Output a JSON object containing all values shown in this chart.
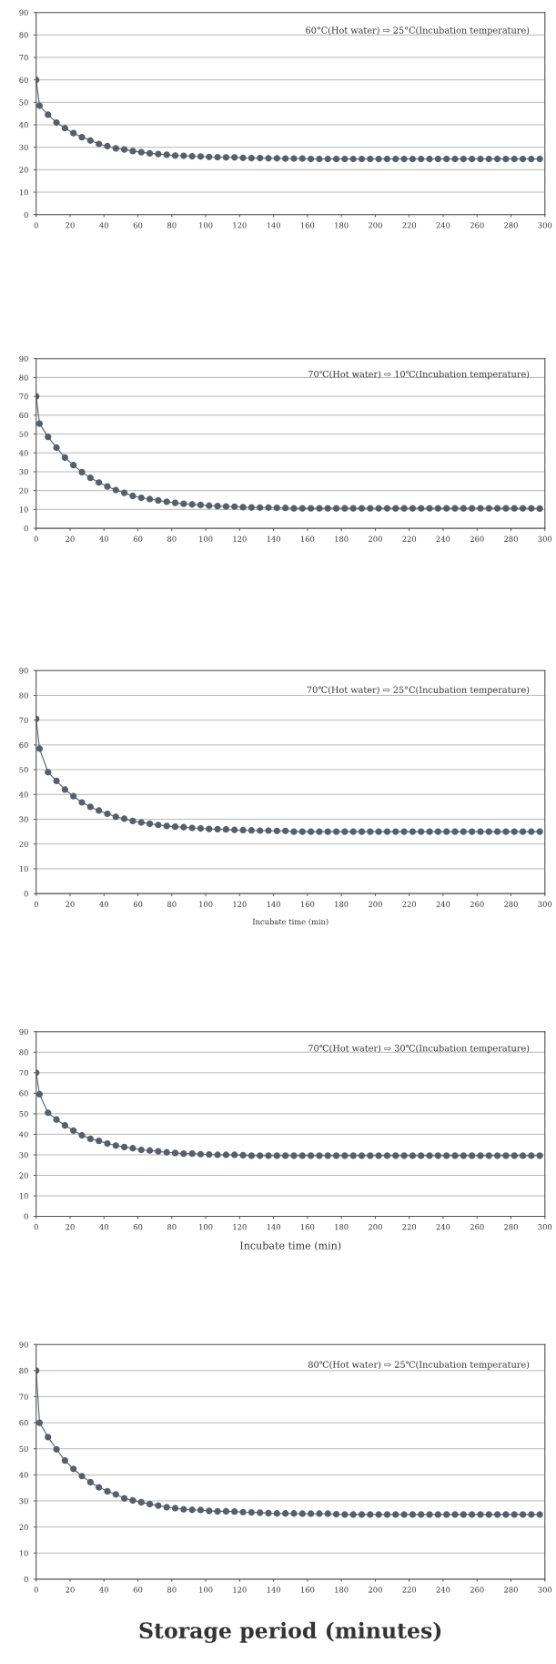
{
  "chart_data": [
    {
      "type": "line",
      "title": "60°C(Hot water) ⇨ 25°C(Incubation temperature)",
      "marker": "circle",
      "line_style": "solid",
      "grid": "y",
      "xlim": [
        0,
        300
      ],
      "ylim": [
        0,
        90
      ],
      "xticks": [
        0,
        20,
        40,
        60,
        80,
        100,
        120,
        140,
        160,
        180,
        200,
        220,
        240,
        260,
        280,
        300
      ],
      "yticks": [
        0,
        10,
        20,
        30,
        40,
        50,
        60,
        70,
        80,
        90
      ],
      "x": [
        0,
        2,
        7,
        12,
        17,
        22,
        27,
        32,
        37,
        42,
        47,
        52,
        57,
        62,
        67,
        72,
        77,
        82,
        87,
        92,
        97,
        102,
        107,
        112,
        117,
        122,
        127,
        132,
        137,
        142,
        147,
        152,
        157,
        162,
        167,
        172,
        177,
        182,
        187,
        192,
        197,
        202,
        207,
        212,
        217,
        222,
        227,
        232,
        237,
        242,
        247,
        252,
        257,
        262,
        267,
        272,
        277,
        282,
        287,
        292,
        297
      ],
      "series": [
        {
          "color": "#56606b",
          "values": [
            60,
            48.5,
            44.5,
            41,
            38.5,
            36.3,
            34.5,
            33,
            31.5,
            30.5,
            29.5,
            29,
            28.3,
            27.8,
            27.3,
            27,
            26.7,
            26.3,
            26.2,
            26,
            25.9,
            25.7,
            25.6,
            25.5,
            25.5,
            25.3,
            25.2,
            25.2,
            25.1,
            25.1,
            25,
            25,
            25,
            24.8,
            24.8,
            24.8,
            24.8,
            24.8,
            24.8,
            24.8,
            24.8,
            24.8,
            24.8,
            24.8,
            24.8,
            24.8,
            24.8,
            24.8,
            24.8,
            24.8,
            24.8,
            24.8,
            24.8,
            24.8,
            24.8,
            24.8,
            24.8,
            24.8,
            24.8,
            24.8,
            24.8
          ]
        }
      ]
    },
    {
      "type": "line",
      "title": "70℃(Hot water) ⇨ 10℃(Incubation temperature)",
      "marker": "circle",
      "line_style": "solid",
      "grid": "y",
      "xlim": [
        0,
        300
      ],
      "ylim": [
        0,
        90
      ],
      "xticks": [
        0,
        20,
        40,
        60,
        80,
        100,
        120,
        140,
        160,
        180,
        200,
        220,
        240,
        260,
        280,
        300
      ],
      "yticks": [
        0,
        10,
        20,
        30,
        40,
        50,
        60,
        70,
        80,
        90
      ],
      "x": [
        0,
        2,
        7,
        12,
        17,
        22,
        27,
        32,
        37,
        42,
        47,
        52,
        57,
        62,
        67,
        72,
        77,
        82,
        87,
        92,
        97,
        102,
        107,
        112,
        117,
        122,
        127,
        132,
        137,
        142,
        147,
        152,
        157,
        162,
        167,
        172,
        177,
        182,
        187,
        192,
        197,
        202,
        207,
        212,
        217,
        222,
        227,
        232,
        237,
        242,
        247,
        252,
        257,
        262,
        267,
        272,
        277,
        282,
        287,
        292,
        297
      ],
      "series": [
        {
          "color": "#56606b",
          "values": [
            70,
            55.5,
            48.5,
            42.8,
            37.5,
            33.5,
            29.8,
            26.8,
            24.3,
            22.2,
            20.3,
            18.8,
            17.2,
            16.2,
            15.5,
            14.8,
            14.1,
            13.5,
            13,
            12.7,
            12.4,
            12,
            11.8,
            11.6,
            11.5,
            11.2,
            11.1,
            11,
            11,
            10.9,
            10.8,
            10.6,
            10.6,
            10.6,
            10.6,
            10.6,
            10.6,
            10.6,
            10.6,
            10.6,
            10.6,
            10.6,
            10.6,
            10.6,
            10.6,
            10.6,
            10.6,
            10.6,
            10.6,
            10.6,
            10.6,
            10.6,
            10.6,
            10.6,
            10.6,
            10.6,
            10.6,
            10.6,
            10.6,
            10.6,
            10.5
          ]
        }
      ]
    },
    {
      "type": "line",
      "title": "70℃(Hot water) ⇨ 25°C(Incubation temperature)",
      "xlabel": "Incubate time (min)",
      "marker": "circle",
      "line_style": "solid",
      "grid": "y",
      "xlim": [
        0,
        300
      ],
      "ylim": [
        0,
        90
      ],
      "xticks": [
        0,
        20,
        40,
        60,
        80,
        100,
        120,
        140,
        160,
        180,
        200,
        220,
        240,
        260,
        280,
        300
      ],
      "yticks": [
        0,
        10,
        20,
        30,
        40,
        50,
        60,
        70,
        80,
        90
      ],
      "x": [
        0,
        2,
        7,
        12,
        17,
        22,
        27,
        32,
        37,
        42,
        47,
        52,
        57,
        62,
        67,
        72,
        77,
        82,
        87,
        92,
        97,
        102,
        107,
        112,
        117,
        122,
        127,
        132,
        137,
        142,
        147,
        152,
        157,
        162,
        167,
        172,
        177,
        182,
        187,
        192,
        197,
        202,
        207,
        212,
        217,
        222,
        227,
        232,
        237,
        242,
        247,
        252,
        257,
        262,
        267,
        272,
        277,
        282,
        287,
        292,
        297
      ],
      "series": [
        {
          "color": "#56606b",
          "values": [
            70.5,
            58.5,
            49,
            45.5,
            42,
            39.3,
            36.8,
            35,
            33.5,
            32.2,
            31,
            30.2,
            29.3,
            28.7,
            28.2,
            27.7,
            27.3,
            27,
            26.8,
            26.5,
            26.3,
            26.1,
            26,
            25.9,
            25.7,
            25.6,
            25.5,
            25.4,
            25.4,
            25.3,
            25.3,
            25,
            25,
            25,
            25,
            25,
            25,
            25,
            25,
            25,
            25,
            25,
            25,
            25,
            25,
            25,
            25,
            25,
            25,
            25,
            25,
            25,
            25,
            25,
            25,
            25,
            25,
            25,
            25,
            25,
            25
          ]
        }
      ]
    },
    {
      "type": "line",
      "title": "70℃(Hot water) ⇨ 30℃(Incubation temperature)",
      "xlabel": "Incubate time (min)",
      "marker": "circle",
      "line_style": "solid",
      "grid": "y",
      "xlim": [
        0,
        300
      ],
      "ylim": [
        0,
        90
      ],
      "xticks": [
        0,
        20,
        40,
        60,
        80,
        100,
        120,
        140,
        160,
        180,
        200,
        220,
        240,
        260,
        280,
        300
      ],
      "yticks": [
        0,
        10,
        20,
        30,
        40,
        50,
        60,
        70,
        80,
        90
      ],
      "x": [
        0,
        2,
        7,
        12,
        17,
        22,
        27,
        32,
        37,
        42,
        47,
        52,
        57,
        62,
        67,
        72,
        77,
        82,
        87,
        92,
        97,
        102,
        107,
        112,
        117,
        122,
        127,
        132,
        137,
        142,
        147,
        152,
        157,
        162,
        167,
        172,
        177,
        182,
        187,
        192,
        197,
        202,
        207,
        212,
        217,
        222,
        227,
        232,
        237,
        242,
        247,
        252,
        257,
        262,
        267,
        272,
        277,
        282,
        287,
        292,
        297
      ],
      "series": [
        {
          "color": "#56606b",
          "values": [
            70,
            59.5,
            50.5,
            47.2,
            44.3,
            41.8,
            39.5,
            37.8,
            36.8,
            35.5,
            34.5,
            33.8,
            33.2,
            32.4,
            32.1,
            31.7,
            31.2,
            30.9,
            30.6,
            30.6,
            30.3,
            30.2,
            30,
            30,
            30,
            29.8,
            29.6,
            29.6,
            29.6,
            29.6,
            29.6,
            29.6,
            29.6,
            29.6,
            29.6,
            29.6,
            29.6,
            29.6,
            29.6,
            29.6,
            29.6,
            29.6,
            29.6,
            29.6,
            29.6,
            29.6,
            29.6,
            29.6,
            29.6,
            29.6,
            29.6,
            29.6,
            29.6,
            29.6,
            29.6,
            29.6,
            29.6,
            29.6,
            29.6,
            29.6,
            29.6
          ]
        }
      ]
    },
    {
      "type": "line",
      "title": "80℃(Hot water) ⇨ 25℃(Incubation temperature)",
      "xlabel": "Storage period (minutes)",
      "marker": "circle",
      "line_style": "solid",
      "grid": "y",
      "xlim": [
        0,
        300
      ],
      "ylim": [
        0,
        90
      ],
      "xticks": [
        0,
        20,
        40,
        60,
        80,
        100,
        120,
        140,
        160,
        180,
        200,
        220,
        240,
        260,
        280,
        300
      ],
      "yticks": [
        0,
        10,
        20,
        30,
        40,
        50,
        60,
        70,
        80,
        90
      ],
      "x": [
        0,
        2,
        7,
        12,
        17,
        22,
        27,
        32,
        37,
        42,
        47,
        52,
        57,
        62,
        67,
        72,
        77,
        82,
        87,
        92,
        97,
        102,
        107,
        112,
        117,
        122,
        127,
        132,
        137,
        142,
        147,
        152,
        157,
        162,
        167,
        172,
        177,
        182,
        187,
        192,
        197,
        202,
        207,
        212,
        217,
        222,
        227,
        232,
        237,
        242,
        247,
        252,
        257,
        262,
        267,
        272,
        277,
        282,
        287,
        292,
        297
      ],
      "series": [
        {
          "color": "#56606b",
          "values": [
            80,
            60,
            54.5,
            49.8,
            45.5,
            42.3,
            39.5,
            37.2,
            35.2,
            33.7,
            32.5,
            31,
            30.2,
            29.5,
            28.8,
            28.2,
            27.6,
            27.2,
            26.8,
            26.6,
            26.5,
            26.2,
            26,
            26,
            25.9,
            25.7,
            25.6,
            25.5,
            25.3,
            25.2,
            25.2,
            25.2,
            25.1,
            25.1,
            25.1,
            25.1,
            24.9,
            24.8,
            24.8,
            24.8,
            24.8,
            24.8,
            24.8,
            24.8,
            24.8,
            24.8,
            24.8,
            24.8,
            24.8,
            24.8,
            24.8,
            24.8,
            24.8,
            24.8,
            24.8,
            24.8,
            24.8,
            24.8,
            24.8,
            24.8,
            24.8
          ]
        }
      ]
    }
  ]
}
